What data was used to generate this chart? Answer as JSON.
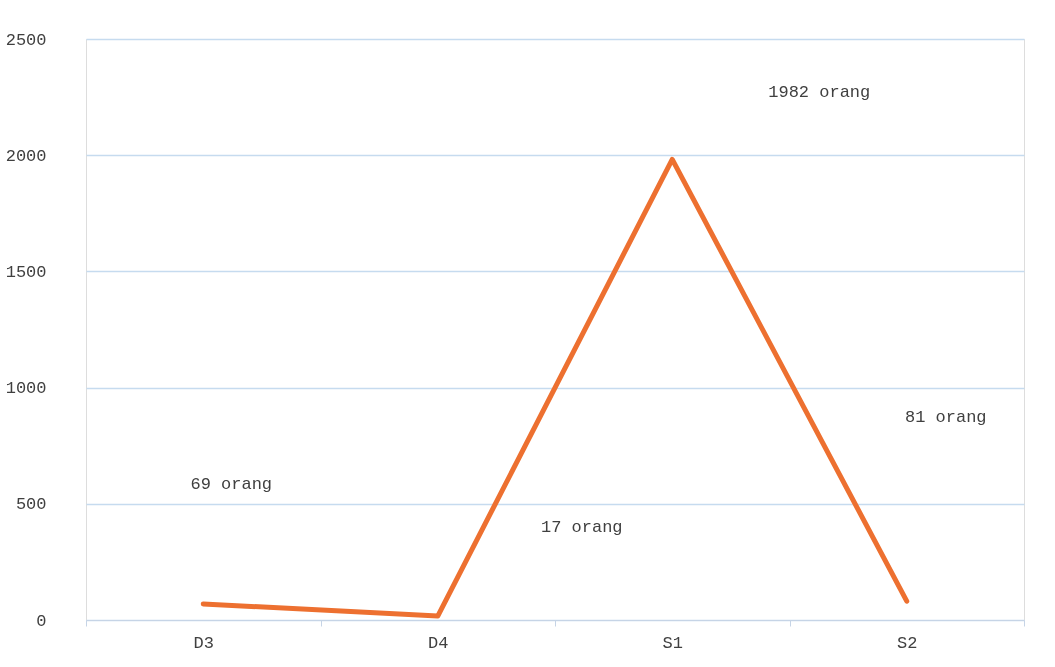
{
  "chart_data": {
    "type": "line",
    "categories": [
      "D3",
      "D4",
      "S1",
      "S2"
    ],
    "series": [
      {
        "color": "#ed7030",
        "values": [
          69,
          17,
          1982,
          81
        ]
      }
    ],
    "value_labels": [
      "69 orang",
      "17 orang",
      "1982 orang",
      "81 orang"
    ],
    "ylim": [
      0,
      2500
    ],
    "yticks": [
      0,
      500,
      1000,
      1500,
      2000,
      2500
    ],
    "grid": "y",
    "marker": "none",
    "line_style": "solid"
  }
}
